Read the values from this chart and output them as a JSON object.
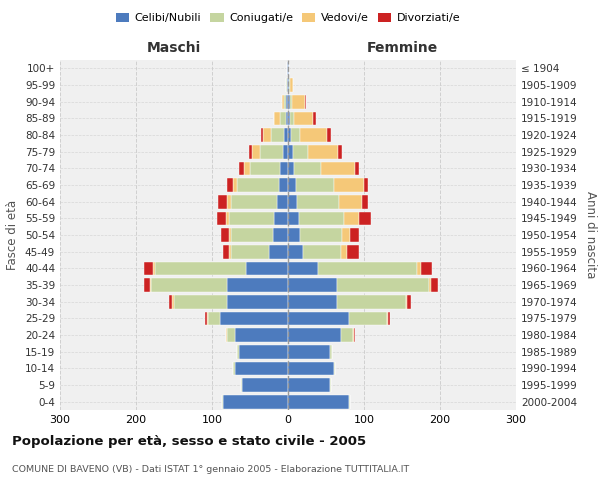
{
  "age_groups": [
    "0-4",
    "5-9",
    "10-14",
    "15-19",
    "20-24",
    "25-29",
    "30-34",
    "35-39",
    "40-44",
    "45-49",
    "50-54",
    "55-59",
    "60-64",
    "65-69",
    "70-74",
    "75-79",
    "80-84",
    "85-89",
    "90-94",
    "95-99",
    "100+"
  ],
  "birth_years": [
    "2000-2004",
    "1995-1999",
    "1990-1994",
    "1985-1989",
    "1980-1984",
    "1975-1979",
    "1970-1974",
    "1965-1969",
    "1960-1964",
    "1955-1959",
    "1950-1954",
    "1945-1949",
    "1940-1944",
    "1935-1939",
    "1930-1934",
    "1925-1929",
    "1920-1924",
    "1915-1919",
    "1910-1914",
    "1905-1909",
    "≤ 1904"
  ],
  "colors": {
    "celibi": "#4D7BBE",
    "coniugati": "#C5D5A0",
    "vedovi": "#F5C878",
    "divorziati": "#CC2222"
  },
  "male": {
    "celibi": [
      85,
      60,
      70,
      65,
      70,
      90,
      80,
      80,
      55,
      25,
      20,
      18,
      15,
      12,
      10,
      7,
      5,
      3,
      2,
      1,
      1
    ],
    "coniugati": [
      2,
      2,
      2,
      2,
      10,
      15,
      70,
      100,
      120,
      50,
      55,
      60,
      60,
      55,
      40,
      30,
      18,
      8,
      3,
      1,
      0
    ],
    "vedovi": [
      0,
      0,
      0,
      0,
      1,
      2,
      2,
      2,
      2,
      2,
      3,
      3,
      5,
      5,
      8,
      10,
      10,
      7,
      3,
      0,
      0
    ],
    "divorziati": [
      0,
      0,
      0,
      0,
      1,
      2,
      5,
      8,
      12,
      8,
      10,
      12,
      12,
      8,
      6,
      4,
      2,
      1,
      0,
      0,
      0
    ]
  },
  "female": {
    "nubili": [
      80,
      55,
      60,
      55,
      70,
      80,
      65,
      65,
      40,
      20,
      16,
      14,
      12,
      10,
      8,
      6,
      4,
      3,
      2,
      1,
      1
    ],
    "coniugate": [
      2,
      2,
      2,
      3,
      15,
      50,
      90,
      120,
      130,
      50,
      55,
      60,
      55,
      50,
      35,
      20,
      12,
      5,
      3,
      1,
      0
    ],
    "vedove": [
      0,
      0,
      0,
      0,
      2,
      2,
      2,
      3,
      5,
      8,
      10,
      20,
      30,
      40,
      45,
      40,
      35,
      25,
      18,
      5,
      0
    ],
    "divorziate": [
      0,
      0,
      0,
      0,
      1,
      2,
      5,
      10,
      15,
      15,
      12,
      15,
      8,
      5,
      5,
      5,
      5,
      4,
      1,
      0,
      0
    ]
  },
  "title": "Popolazione per età, sesso e stato civile - 2005",
  "subtitle": "COMUNE DI BAVENO (VB) - Dati ISTAT 1° gennaio 2005 - Elaborazione TUTTITALIA.IT",
  "xlabel_left": "Maschi",
  "xlabel_right": "Femmine",
  "ylabel_left": "Fasce di età",
  "ylabel_right": "Anni di nascita",
  "xlim": 300,
  "bg_color": "#f0f0f0",
  "grid_color": "#cccccc"
}
